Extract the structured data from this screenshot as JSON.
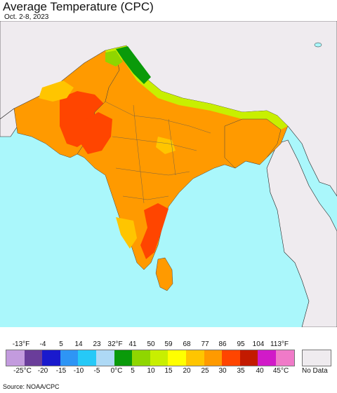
{
  "title": "Average Temperature (CPC)",
  "subtitle": "Oct. 2-8, 2023",
  "source": "Source: NOAA/CPC",
  "legend": {
    "fahrenheit_ticks": [
      "-13°F",
      "-4",
      "5",
      "14",
      "23",
      "32°F",
      "41",
      "50",
      "59",
      "68",
      "77",
      "86",
      "95",
      "104",
      "113°F"
    ],
    "celsius_ticks": [
      "-25°C",
      "-20",
      "-15",
      "-10",
      "-5",
      "0°C",
      "5",
      "10",
      "15",
      "20",
      "25",
      "30",
      "35",
      "40",
      "45°C"
    ],
    "colors": [
      "#c39bde",
      "#6a3d9a",
      "#1a1acd",
      "#2e95f5",
      "#26c9f7",
      "#aed9f5",
      "#0a9a0a",
      "#8fd600",
      "#c8ef00",
      "#ffff00",
      "#ffc500",
      "#ff9a00",
      "#ff4500",
      "#c31a00",
      "#d11ac8",
      "#f07ac8"
    ],
    "no_data_label": "No Data",
    "no_data_color": "#efebef"
  },
  "map_colors": {
    "ocean": "#aaf7fb",
    "land_outside": "#efebef"
  }
}
